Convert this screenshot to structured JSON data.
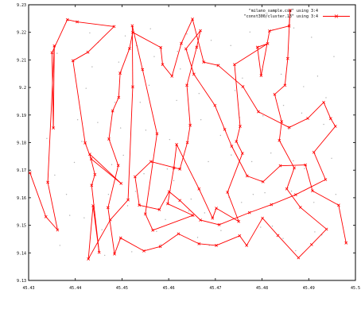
{
  "chart_data": {
    "type": "scatter",
    "title": "",
    "xlabel": "",
    "ylabel": "",
    "xlim": [
      45.43,
      45.5
    ],
    "ylim": [
      9.13,
      9.23
    ],
    "grid": false,
    "legend_position": "top-right",
    "x_ticks": [
      "45.43",
      "45.44",
      "45.45",
      "45.46",
      "45.47",
      "45.48",
      "45.49",
      "45.5"
    ],
    "y_ticks": [
      "9.13",
      "9.14",
      "9.15",
      "9.16",
      "9.17",
      "9.18",
      "9.19",
      "9.2",
      "9.21",
      "9.22",
      "9.23"
    ],
    "series": [
      {
        "name": "\"milano_sample.csv\" using 3:4",
        "style": "dots",
        "color": "#b0b0b0",
        "points": [
          [
            45.4352,
            9.2041
          ],
          [
            45.4381,
            9.1612
          ],
          [
            45.4405,
            9.1883
          ],
          [
            45.4431,
            9.2198
          ],
          [
            45.4457,
            9.1484
          ],
          [
            45.4478,
            9.172
          ],
          [
            45.4493,
            9.2092
          ],
          [
            45.4512,
            9.1571
          ],
          [
            45.4539,
            9.1946
          ],
          [
            45.4561,
            9.2213
          ],
          [
            45.4583,
            9.143
          ],
          [
            45.4602,
            9.1811
          ],
          [
            45.4625,
            9.2067
          ],
          [
            45.4648,
            9.1595
          ],
          [
            45.4669,
            9.1883
          ],
          [
            45.4691,
            9.2171
          ],
          [
            45.4712,
            9.1481
          ],
          [
            45.4734,
            9.1755
          ],
          [
            45.4758,
            9.2034
          ],
          [
            45.4781,
            9.1612
          ],
          [
            45.4802,
            9.1897
          ],
          [
            45.4823,
            9.2209
          ],
          [
            45.4845,
            9.1452
          ],
          [
            45.4867,
            9.1734
          ],
          [
            45.4889,
            9.2003
          ],
          [
            45.4911,
            9.1583
          ],
          [
            45.4932,
            9.1866
          ],
          [
            45.4954,
            9.2112
          ],
          [
            45.4367,
            9.1427
          ],
          [
            45.4398,
            9.1728
          ],
          [
            45.4423,
            9.1997
          ],
          [
            45.4449,
            9.2163
          ],
          [
            45.4471,
            9.1612
          ],
          [
            45.4497,
            9.1853
          ],
          [
            45.4521,
            9.1404
          ],
          [
            45.4547,
            9.1687
          ],
          [
            45.4569,
            9.2112
          ],
          [
            45.4593,
            9.1521
          ],
          [
            45.4617,
            9.1953
          ],
          [
            45.4639,
            9.2194
          ],
          [
            45.4662,
            9.1456
          ],
          [
            45.4685,
            9.1731
          ],
          [
            45.4708,
            9.2083
          ],
          [
            45.4729,
            9.1602
          ],
          [
            45.4752,
            9.1891
          ],
          [
            45.4774,
            9.2201
          ],
          [
            45.4797,
            9.1493
          ],
          [
            45.4819,
            9.1762
          ],
          [
            45.4841,
            9.2048
          ],
          [
            45.4863,
            9.1624
          ],
          [
            45.4885,
            9.1907
          ],
          [
            45.4906,
            9.2182
          ],
          [
            45.4928,
            9.1465
          ],
          [
            45.4949,
            9.1743
          ],
          [
            45.4339,
            9.1815
          ],
          [
            45.4361,
            9.2124
          ],
          [
            45.4388,
            9.1536
          ],
          [
            45.4414,
            9.1804
          ],
          [
            45.4436,
            9.2075
          ],
          [
            45.4463,
            9.1391
          ],
          [
            45.4485,
            9.1946
          ],
          [
            45.4507,
            9.2187
          ],
          [
            45.4529,
            9.1623
          ],
          [
            45.4551,
            9.1845
          ],
          [
            45.4574,
            9.1478
          ],
          [
            45.4597,
            9.1704
          ],
          [
            45.4619,
            9.2131
          ],
          [
            45.4643,
            9.1552
          ],
          [
            45.4665,
            9.1978
          ],
          [
            45.4687,
            9.1427
          ],
          [
            45.4711,
            9.1826
          ],
          [
            45.4733,
            9.2152
          ],
          [
            45.4756,
            9.1583
          ],
          [
            45.4778,
            9.1731
          ],
          [
            45.4801,
            9.2064
          ],
          [
            45.4822,
            9.1497
          ],
          [
            45.4846,
            9.1935
          ],
          [
            45.4868,
            9.2216
          ],
          [
            45.4891,
            9.1706
          ],
          [
            45.4913,
            9.1476
          ],
          [
            45.4937,
            9.1963
          ],
          [
            45.4958,
            9.1612
          ],
          [
            45.4356,
            9.1682
          ],
          [
            45.4419,
            9.1527
          ],
          [
            45.4448,
            9.1873
          ],
          [
            45.4503,
            9.1754
          ],
          [
            45.4558,
            9.2008
          ],
          [
            45.4611,
            9.1662
          ],
          [
            45.4677,
            9.1545
          ],
          [
            45.4742,
            9.1989
          ],
          [
            45.4806,
            9.1618
          ],
          [
            45.4857,
            9.1849
          ],
          [
            45.4919,
            9.2041
          ],
          [
            45.4872,
            9.1408
          ],
          [
            45.4531,
            9.2152
          ]
        ]
      },
      {
        "name": "\"const300/cluster.13\" using 3:4",
        "style": "linespoints",
        "color": "#ff0000",
        "points": [
          [
            45.4303,
            9.169
          ],
          [
            45.4337,
            9.1531
          ],
          [
            45.4362,
            9.1483
          ],
          [
            45.4341,
            9.1656
          ],
          [
            45.4355,
            9.2151
          ],
          [
            45.4353,
            9.1853
          ],
          [
            45.435,
            9.2126
          ],
          [
            45.4383,
            9.2246
          ],
          [
            45.4404,
            9.2238
          ],
          [
            45.4483,
            9.2221
          ],
          [
            45.4427,
            9.2128
          ],
          [
            45.4395,
            9.2097
          ],
          [
            45.4421,
            9.1799
          ],
          [
            45.4434,
            9.1741
          ],
          [
            45.4498,
            9.1652
          ],
          [
            45.4431,
            9.1758
          ],
          [
            45.4442,
            9.1684
          ],
          [
            45.4435,
            9.1645
          ],
          [
            45.4451,
            9.1402
          ],
          [
            45.4438,
            9.1571
          ],
          [
            45.4428,
            9.1378
          ],
          [
            45.4475,
            9.152
          ],
          [
            45.4513,
            9.1592
          ],
          [
            45.4523,
            9.2002
          ],
          [
            45.4522,
            9.2224
          ],
          [
            45.4544,
            9.2065
          ],
          [
            45.4575,
            9.1832
          ],
          [
            45.455,
            9.1541
          ],
          [
            45.4566,
            9.1482
          ],
          [
            45.4652,
            9.1536
          ],
          [
            45.4598,
            9.1578
          ],
          [
            45.4611,
            9.1708
          ],
          [
            45.4617,
            9.1793
          ],
          [
            45.4665,
            9.1632
          ],
          [
            45.4694,
            9.1526
          ],
          [
            45.4702,
            9.1562
          ],
          [
            45.475,
            9.1514
          ],
          [
            45.4726,
            9.162
          ],
          [
            45.4758,
            9.1761
          ],
          [
            45.4745,
            9.1804
          ],
          [
            45.4753,
            9.1859
          ],
          [
            45.4741,
            9.2083
          ],
          [
            45.4812,
            9.2159
          ],
          [
            45.479,
            9.2146
          ],
          [
            45.4798,
            9.2043
          ],
          [
            45.4816,
            9.2205
          ],
          [
            45.4858,
            9.2223
          ],
          [
            45.486,
            9.228
          ],
          [
            45.4855,
            9.2105
          ],
          [
            45.4849,
            9.2008
          ],
          [
            45.4827,
            9.1975
          ],
          [
            45.4842,
            9.1876
          ],
          [
            45.4837,
            9.1808
          ],
          [
            45.4869,
            9.1708
          ],
          [
            45.4853,
            9.1632
          ],
          [
            45.4882,
            9.1565
          ],
          [
            45.4938,
            9.1486
          ],
          [
            45.4906,
            9.143
          ],
          [
            45.4878,
            9.1382
          ],
          [
            45.4834,
            9.1463
          ],
          [
            45.4801,
            9.1526
          ],
          [
            45.4767,
            9.1427
          ],
          [
            45.4752,
            9.1462
          ],
          [
            45.4702,
            9.1427
          ],
          [
            45.4665,
            9.1433
          ],
          [
            45.4621,
            9.1469
          ],
          [
            45.4582,
            9.1423
          ],
          [
            45.4547,
            9.1407
          ],
          [
            45.4497,
            9.1454
          ],
          [
            45.4484,
            9.1396
          ],
          [
            45.447,
            9.1564
          ],
          [
            45.4492,
            9.1717
          ],
          [
            45.4472,
            9.1813
          ],
          [
            45.448,
            9.1915
          ],
          [
            45.4493,
            9.1964
          ],
          [
            45.4496,
            9.2052
          ],
          [
            45.4516,
            9.2141
          ],
          [
            45.4523,
            9.22
          ],
          [
            45.4583,
            9.2145
          ],
          [
            45.4587,
            9.2083
          ],
          [
            45.4607,
            9.2041
          ],
          [
            45.4627,
            9.216
          ],
          [
            45.4651,
            9.2248
          ],
          [
            45.4675,
            9.2092
          ],
          [
            45.4706,
            9.208
          ],
          [
            45.4759,
            9.2003
          ],
          [
            45.4792,
            9.1912
          ],
          [
            45.4858,
            9.1855
          ],
          [
            45.4898,
            9.1888
          ],
          [
            45.4932,
            9.1946
          ],
          [
            45.4947,
            9.1887
          ],
          [
            45.4957,
            9.1859
          ],
          [
            45.4911,
            9.1765
          ],
          [
            45.4936,
            9.1666
          ],
          [
            45.4872,
            9.1611
          ],
          [
            45.482,
            9.1575
          ],
          [
            45.4773,
            9.1546
          ],
          [
            45.4708,
            9.1502
          ],
          [
            45.4668,
            9.1519
          ],
          [
            45.4624,
            9.159
          ],
          [
            45.4601,
            9.1622
          ],
          [
            45.458,
            9.1557
          ],
          [
            45.4537,
            9.1573
          ],
          [
            45.4528,
            9.1676
          ],
          [
            45.4562,
            9.1731
          ],
          [
            45.4624,
            9.1704
          ],
          [
            45.464,
            9.18
          ],
          [
            45.4646,
            9.1863
          ],
          [
            45.4639,
            9.2008
          ],
          [
            45.466,
            9.2146
          ],
          [
            45.4668,
            9.2206
          ],
          [
            45.4637,
            9.214
          ],
          [
            45.4654,
            9.2048
          ],
          [
            45.4699,
            9.1935
          ],
          [
            45.472,
            9.1848
          ],
          [
            45.4735,
            9.1787
          ],
          [
            45.4768,
            9.1679
          ],
          [
            45.4802,
            9.1658
          ],
          [
            45.4839,
            9.1716
          ],
          [
            45.4893,
            9.1719
          ],
          [
            45.4908,
            9.1625
          ],
          [
            45.4964,
            9.1573
          ],
          [
            45.498,
            9.1436
          ]
        ]
      }
    ]
  }
}
